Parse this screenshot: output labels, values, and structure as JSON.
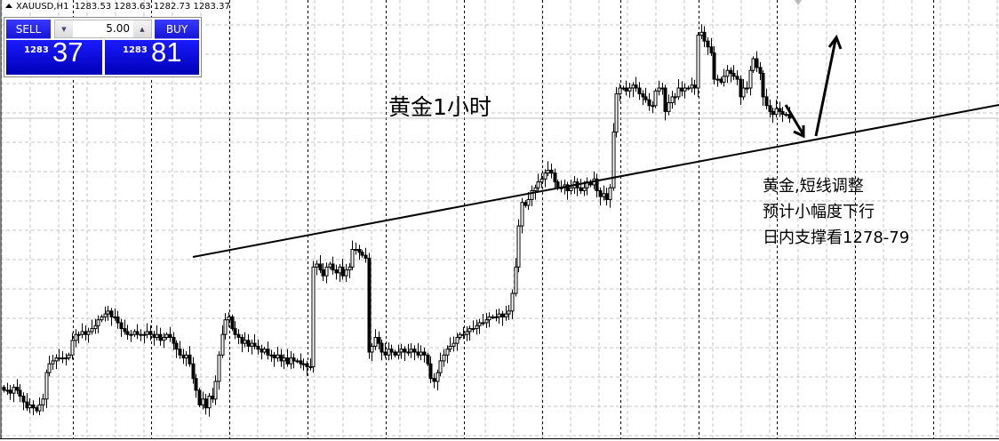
{
  "header": {
    "symbol": "XAUUSD,H1",
    "open": "1283.53",
    "high": "1283.63",
    "low": "1282.73",
    "close": "1283.37"
  },
  "trade_panel": {
    "sell_label": "SELL",
    "buy_label": "BUY",
    "lot_value": "5.00",
    "sell_price_prefix": "1283",
    "sell_price_suffix": "37",
    "buy_price_prefix": "1283",
    "buy_price_suffix": "81",
    "accent_color": "#1010e0"
  },
  "annotations": {
    "title": "黄金1小时",
    "note_lines": [
      "黄金,短线调整",
      "预计小幅度下行",
      "日内支撑看1278-79"
    ]
  },
  "chart_data": {
    "type": "candlestick",
    "symbol": "XAUUSD",
    "timeframe": "H1",
    "current_price": 1283.37,
    "grid": true,
    "bull_color": "#ffffff",
    "bear_color": "#000000",
    "closes": [
      1274.1,
      1274.1,
      1274.0,
      1274.2,
      1274.1,
      1273.9,
      1273.7,
      1273.5,
      1273.6,
      1273.5,
      1273.4,
      1273.6,
      1273.8,
      1274.7,
      1275.0,
      1275.1,
      1275.2,
      1275.2,
      1275.2,
      1275.2,
      1275.3,
      1275.8,
      1276.0,
      1276.0,
      1276.1,
      1276.0,
      1276.1,
      1276.2,
      1276.3,
      1276.5,
      1276.6,
      1276.7,
      1276.8,
      1276.6,
      1276.6,
      1276.4,
      1276.2,
      1276.1,
      1276.0,
      1276.0,
      1276.1,
      1276.0,
      1276.0,
      1276.0,
      1276.1,
      1276.0,
      1275.9,
      1276.0,
      1275.8,
      1275.9,
      1276.0,
      1275.9,
      1275.7,
      1275.5,
      1275.3,
      1275.2,
      1275.3,
      1275.0,
      1274.5,
      1274.1,
      1273.6,
      1273.8,
      1273.5,
      1273.9,
      1273.8,
      1274.4,
      1275.3,
      1276.0,
      1276.5,
      1276.6,
      1276.2,
      1276.0,
      1275.9,
      1275.7,
      1275.8,
      1275.6,
      1275.7,
      1275.6,
      1275.5,
      1275.4,
      1275.5,
      1275.3,
      1275.3,
      1275.2,
      1275.3,
      1275.1,
      1275.2,
      1275.0,
      1275.2,
      1275.1,
      1275.1,
      1275.0,
      1275.0,
      1274.9,
      1274.9,
      1278.3,
      1278.4,
      1278.2,
      1278.0,
      1278.3,
      1278.4,
      1278.2,
      1278.1,
      1278.3,
      1278.0,
      1278.2,
      1278.3,
      1278.9,
      1278.9,
      1278.8,
      1278.7,
      1278.6,
      1275.4,
      1275.6,
      1275.9,
      1275.7,
      1275.4,
      1275.3,
      1275.5,
      1275.4,
      1275.3,
      1275.4,
      1275.5,
      1275.4,
      1275.4,
      1275.5,
      1275.4,
      1275.3,
      1275.4,
      1275.3,
      1275.0,
      1274.5,
      1274.4,
      1274.7,
      1275.1,
      1275.3,
      1275.5,
      1275.6,
      1275.7,
      1275.9,
      1276.0,
      1276.0,
      1276.1,
      1276.2,
      1276.2,
      1276.3,
      1276.4,
      1276.4,
      1276.5,
      1276.6,
      1276.6,
      1276.6,
      1276.7,
      1276.6,
      1276.7,
      1276.8,
      1277.4,
      1278.3,
      1279.7,
      1280.5,
      1280.4,
      1280.6,
      1280.9,
      1281.0,
      1281.2,
      1281.3,
      1281.5,
      1281.6,
      1281.5,
      1281.2,
      1281.0,
      1281.0,
      1281.1,
      1280.9,
      1281.0,
      1281.2,
      1281.0,
      1280.9,
      1281.0,
      1281.2,
      1281.1,
      1281.3,
      1280.9,
      1280.7,
      1280.8,
      1280.6,
      1281.0,
      1282.9,
      1284.2,
      1284.4,
      1284.4,
      1284.3,
      1284.4,
      1284.5,
      1284.4,
      1284.2,
      1284.1,
      1284.0,
      1283.8,
      1283.8,
      1284.3,
      1284.4,
      1284.4,
      1283.6,
      1283.9,
      1284.1,
      1284.1,
      1284.4,
      1284.3,
      1284.4,
      1284.4,
      1284.5,
      1284.4,
      1286.2,
      1286.3,
      1286.0,
      1285.8,
      1285.6,
      1284.7,
      1284.7,
      1284.6,
      1284.8,
      1285.0,
      1284.9,
      1284.8,
      1284.7,
      1284.1,
      1284.4,
      1284.4,
      1285.0,
      1285.4,
      1285.1,
      1284.9,
      1284.1,
      1283.8,
      1283.6,
      1283.5,
      1283.7,
      1283.6,
      1283.5,
      1283.5,
      1283.37
    ]
  }
}
